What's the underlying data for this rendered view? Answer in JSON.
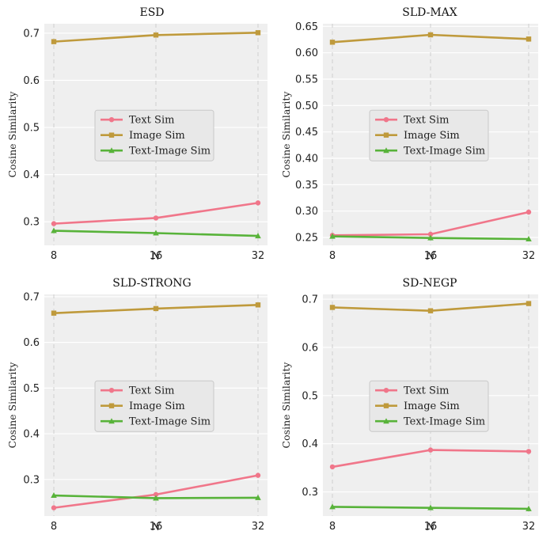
{
  "chart_data": [
    {
      "type": "line",
      "title": "ESD",
      "xlabel": "N",
      "ylabel": "Cosine Similarity",
      "x": [
        8,
        16,
        32
      ],
      "x_tick_labels": [
        "8",
        "16",
        "32"
      ],
      "ylim": [
        0.25,
        0.72
      ],
      "y_ticks": [
        0.3,
        0.4,
        0.5,
        0.6,
        0.7
      ],
      "y_tick_labels": [
        "0.3",
        "0.4",
        "0.5",
        "0.6",
        "0.7"
      ],
      "legend_position": "center",
      "series": [
        {
          "name": "Text Sim",
          "color": "#f0768a",
          "marker": "circle",
          "values": [
            0.296,
            0.308,
            0.34
          ]
        },
        {
          "name": "Image Sim",
          "color": "#bf9a3c",
          "marker": "square",
          "values": [
            0.682,
            0.696,
            0.701
          ]
        },
        {
          "name": "Text-Image Sim",
          "color": "#58b33a",
          "marker": "triangle",
          "values": [
            0.281,
            0.276,
            0.27
          ]
        }
      ]
    },
    {
      "type": "line",
      "title": "SLD-MAX",
      "xlabel": "N",
      "ylabel": "Cosine Similarity",
      "x": [
        8,
        16,
        32
      ],
      "x_tick_labels": [
        "8",
        "16",
        "32"
      ],
      "ylim": [
        0.235,
        0.655
      ],
      "y_ticks": [
        0.25,
        0.3,
        0.35,
        0.4,
        0.45,
        0.5,
        0.55,
        0.6,
        0.65
      ],
      "y_tick_labels": [
        "0.25",
        "0.30",
        "0.35",
        "0.40",
        "0.45",
        "0.50",
        "0.55",
        "0.60",
        "0.65"
      ],
      "legend_position": "center",
      "series": [
        {
          "name": "Text Sim",
          "color": "#f0768a",
          "marker": "circle",
          "values": [
            0.254,
            0.256,
            0.298
          ]
        },
        {
          "name": "Image Sim",
          "color": "#bf9a3c",
          "marker": "square",
          "values": [
            0.62,
            0.634,
            0.626
          ]
        },
        {
          "name": "Text-Image Sim",
          "color": "#58b33a",
          "marker": "triangle",
          "values": [
            0.252,
            0.249,
            0.247
          ]
        }
      ]
    },
    {
      "type": "line",
      "title": "SLD-STRONG",
      "xlabel": "N",
      "ylabel": "Cosine Similarity",
      "x": [
        8,
        16,
        32
      ],
      "x_tick_labels": [
        "8",
        "16",
        "32"
      ],
      "ylim": [
        0.22,
        0.705
      ],
      "y_ticks": [
        0.3,
        0.4,
        0.5,
        0.6,
        0.7
      ],
      "y_tick_labels": [
        "0.3",
        "0.4",
        "0.5",
        "0.6",
        "0.7"
      ],
      "legend_position": "center",
      "series": [
        {
          "name": "Text Sim",
          "color": "#f0768a",
          "marker": "circle",
          "values": [
            0.238,
            0.267,
            0.309
          ]
        },
        {
          "name": "Image Sim",
          "color": "#bf9a3c",
          "marker": "square",
          "values": [
            0.664,
            0.674,
            0.682
          ]
        },
        {
          "name": "Text-Image Sim",
          "color": "#58b33a",
          "marker": "triangle",
          "values": [
            0.265,
            0.259,
            0.26
          ]
        }
      ]
    },
    {
      "type": "line",
      "title": "SD-NEGP",
      "xlabel": "N",
      "ylabel": "Cosine Similarity",
      "x": [
        8,
        16,
        32
      ],
      "x_tick_labels": [
        "8",
        "16",
        "32"
      ],
      "ylim": [
        0.25,
        0.71
      ],
      "y_ticks": [
        0.3,
        0.4,
        0.5,
        0.6,
        0.7
      ],
      "y_tick_labels": [
        "0.3",
        "0.4",
        "0.5",
        "0.6",
        "0.7"
      ],
      "legend_position": "center",
      "series": [
        {
          "name": "Text Sim",
          "color": "#f0768a",
          "marker": "circle",
          "values": [
            0.352,
            0.387,
            0.384
          ]
        },
        {
          "name": "Image Sim",
          "color": "#bf9a3c",
          "marker": "square",
          "values": [
            0.683,
            0.676,
            0.691
          ]
        },
        {
          "name": "Text-Image Sim",
          "color": "#58b33a",
          "marker": "triangle",
          "values": [
            0.269,
            0.267,
            0.265
          ]
        }
      ]
    }
  ]
}
